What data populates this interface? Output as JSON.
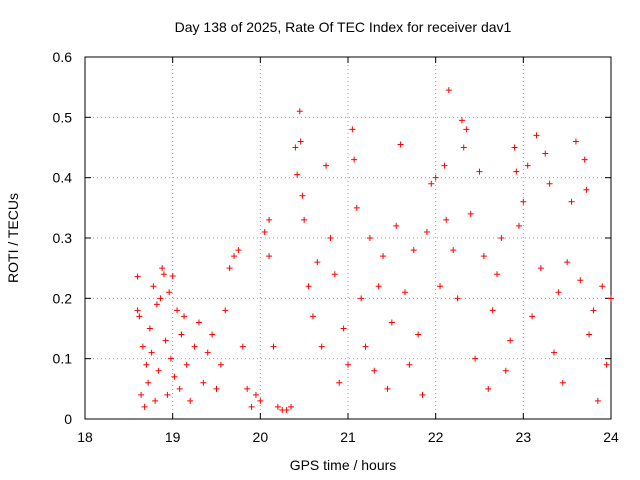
{
  "chart_data": {
    "type": "scatter",
    "title": "Day 138 of 2025, Rate Of TEC Index for receiver dav1",
    "xlabel": "GPS time / hours",
    "ylabel": "ROTI / TECUs",
    "xlim": [
      18,
      24
    ],
    "ylim": [
      0,
      0.6
    ],
    "xticks": [
      "18",
      "19",
      "20",
      "21",
      "22",
      "23",
      "24"
    ],
    "yticks": [
      "0",
      "0.1",
      "0.2",
      "0.3",
      "0.4",
      "0.5",
      "0.6"
    ],
    "grid": true,
    "marker": "plus",
    "color": "#ff0000",
    "series": [
      {
        "points": [
          [
            18.6,
            0.236
          ],
          [
            18.6,
            0.18
          ],
          [
            18.62,
            0.17
          ],
          [
            18.64,
            0.04
          ],
          [
            18.66,
            0.12
          ],
          [
            18.68,
            0.02
          ],
          [
            18.7,
            0.09
          ],
          [
            18.72,
            0.06
          ],
          [
            18.74,
            0.15
          ],
          [
            18.76,
            0.11
          ],
          [
            18.78,
            0.22
          ],
          [
            18.8,
            0.03
          ],
          [
            18.82,
            0.19
          ],
          [
            18.84,
            0.08
          ],
          [
            18.86,
            0.2
          ],
          [
            18.88,
            0.25
          ],
          [
            18.9,
            0.24
          ],
          [
            18.92,
            0.13
          ],
          [
            18.94,
            0.04
          ],
          [
            18.96,
            0.21
          ],
          [
            18.98,
            0.1
          ],
          [
            19.0,
            0.237
          ],
          [
            19.02,
            0.07
          ],
          [
            19.05,
            0.18
          ],
          [
            19.08,
            0.05
          ],
          [
            19.1,
            0.14
          ],
          [
            19.13,
            0.17
          ],
          [
            19.16,
            0.09
          ],
          [
            19.2,
            0.03
          ],
          [
            19.25,
            0.12
          ],
          [
            19.3,
            0.16
          ],
          [
            19.35,
            0.06
          ],
          [
            19.4,
            0.11
          ],
          [
            19.45,
            0.14
          ],
          [
            19.5,
            0.05
          ],
          [
            19.55,
            0.09
          ],
          [
            19.6,
            0.18
          ],
          [
            19.65,
            0.25
          ],
          [
            19.7,
            0.27
          ],
          [
            19.75,
            0.28
          ],
          [
            19.8,
            0.12
          ],
          [
            19.85,
            0.05
          ],
          [
            19.9,
            0.02
          ],
          [
            19.95,
            0.04
          ],
          [
            20.0,
            0.03
          ],
          [
            20.05,
            0.31
          ],
          [
            20.1,
            0.33
          ],
          [
            20.1,
            0.27
          ],
          [
            20.15,
            0.12
          ],
          [
            20.2,
            0.02
          ],
          [
            20.25,
            0.015
          ],
          [
            20.3,
            0.015
          ],
          [
            20.35,
            0.02
          ],
          [
            20.4,
            0.45
          ],
          [
            20.42,
            0.405
          ],
          [
            20.45,
            0.51
          ],
          [
            20.46,
            0.46
          ],
          [
            20.48,
            0.37
          ],
          [
            20.5,
            0.33
          ],
          [
            20.55,
            0.22
          ],
          [
            20.6,
            0.17
          ],
          [
            20.65,
            0.26
          ],
          [
            20.7,
            0.12
          ],
          [
            20.75,
            0.42
          ],
          [
            20.8,
            0.3
          ],
          [
            20.85,
            0.24
          ],
          [
            20.9,
            0.06
          ],
          [
            20.95,
            0.15
          ],
          [
            21.0,
            0.09
          ],
          [
            21.05,
            0.48
          ],
          [
            21.07,
            0.43
          ],
          [
            21.1,
            0.35
          ],
          [
            21.15,
            0.2
          ],
          [
            21.2,
            0.12
          ],
          [
            21.25,
            0.3
          ],
          [
            21.3,
            0.08
          ],
          [
            21.35,
            0.22
          ],
          [
            21.4,
            0.27
          ],
          [
            21.45,
            0.05
          ],
          [
            21.5,
            0.16
          ],
          [
            21.55,
            0.32
          ],
          [
            21.6,
            0.455
          ],
          [
            21.65,
            0.21
          ],
          [
            21.7,
            0.09
          ],
          [
            21.75,
            0.28
          ],
          [
            21.8,
            0.14
          ],
          [
            21.85,
            0.04
          ],
          [
            21.9,
            0.31
          ],
          [
            21.95,
            0.39
          ],
          [
            22.0,
            0.4
          ],
          [
            22.05,
            0.22
          ],
          [
            22.1,
            0.42
          ],
          [
            22.12,
            0.33
          ],
          [
            22.15,
            0.545
          ],
          [
            22.2,
            0.28
          ],
          [
            22.25,
            0.2
          ],
          [
            22.3,
            0.495
          ],
          [
            22.32,
            0.45
          ],
          [
            22.35,
            0.48
          ],
          [
            22.4,
            0.34
          ],
          [
            22.45,
            0.1
          ],
          [
            22.5,
            0.41
          ],
          [
            22.55,
            0.27
          ],
          [
            22.6,
            0.05
          ],
          [
            22.65,
            0.18
          ],
          [
            22.7,
            0.24
          ],
          [
            22.75,
            0.3
          ],
          [
            22.8,
            0.08
          ],
          [
            22.85,
            0.13
          ],
          [
            22.9,
            0.45
          ],
          [
            22.92,
            0.41
          ],
          [
            22.95,
            0.32
          ],
          [
            23.0,
            0.36
          ],
          [
            23.05,
            0.42
          ],
          [
            23.1,
            0.17
          ],
          [
            23.15,
            0.47
          ],
          [
            23.2,
            0.25
          ],
          [
            23.25,
            0.44
          ],
          [
            23.3,
            0.39
          ],
          [
            23.35,
            0.11
          ],
          [
            23.4,
            0.21
          ],
          [
            23.45,
            0.06
          ],
          [
            23.5,
            0.26
          ],
          [
            23.55,
            0.36
          ],
          [
            23.6,
            0.46
          ],
          [
            23.65,
            0.23
          ],
          [
            23.7,
            0.43
          ],
          [
            23.72,
            0.38
          ],
          [
            23.75,
            0.14
          ],
          [
            23.8,
            0.18
          ],
          [
            23.85,
            0.03
          ],
          [
            23.9,
            0.22
          ],
          [
            23.95,
            0.09
          ],
          [
            24.0,
            0.2
          ]
        ]
      }
    ]
  }
}
